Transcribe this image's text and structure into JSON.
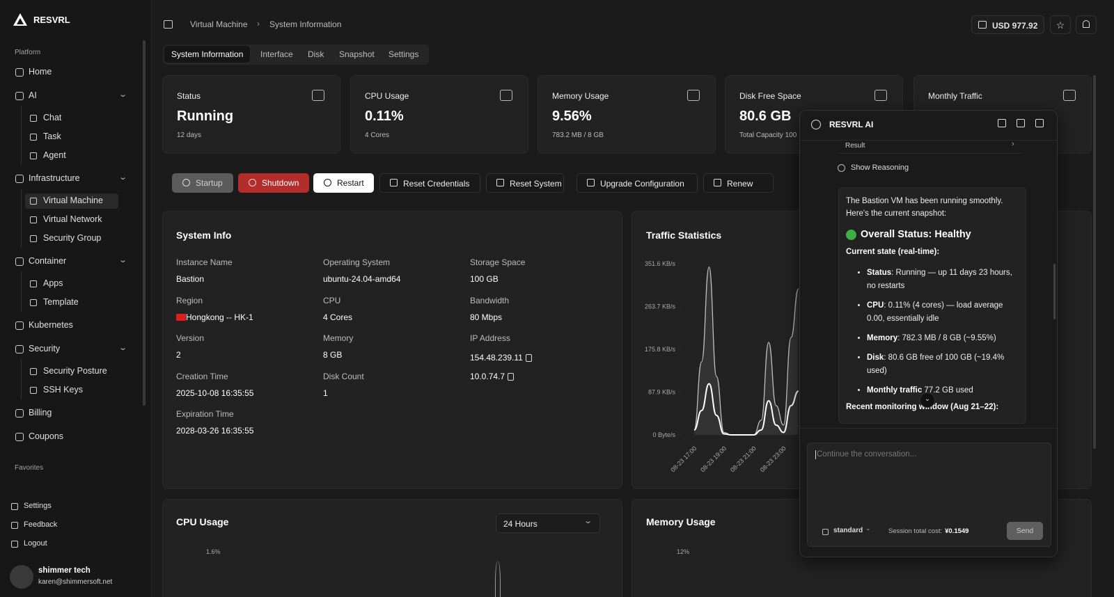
{
  "brand": "RESVRL",
  "sidebar": {
    "platform_label": "Platform",
    "items": [
      {
        "label": "Home"
      },
      {
        "label": "AI",
        "children": [
          "Chat",
          "Task",
          "Agent"
        ]
      },
      {
        "label": "Infrastructure",
        "children": [
          "Virtual Machine",
          "Virtual Network",
          "Security Group"
        ]
      },
      {
        "label": "Container",
        "children": [
          "Apps",
          "Template"
        ]
      },
      {
        "label": "Kubernetes"
      },
      {
        "label": "Security",
        "children": [
          "Security Posture",
          "SSH Keys"
        ]
      },
      {
        "label": "Billing"
      },
      {
        "label": "Coupons"
      }
    ],
    "favorites_label": "Favorites",
    "footer": [
      "Settings",
      "Feedback",
      "Logout"
    ],
    "user": {
      "name": "shimmer tech",
      "email": "karen@shimmersoft.net"
    }
  },
  "breadcrumb": [
    "Virtual Machine",
    "System Information"
  ],
  "balance": "USD 977.92",
  "tabs": [
    "System Information",
    "Interface",
    "Disk",
    "Snapshot",
    "Settings"
  ],
  "stats": [
    {
      "label": "Status",
      "value": "Running",
      "sub": "12 days"
    },
    {
      "label": "CPU Usage",
      "value": "0.11%",
      "sub": "4 Cores"
    },
    {
      "label": "Memory Usage",
      "value": "9.56%",
      "sub": "783.2 MB / 8 GB"
    },
    {
      "label": "Disk Free Space",
      "value": "80.6 GB",
      "sub": "Total Capacity 100"
    },
    {
      "label": "Monthly Traffic"
    }
  ],
  "actions": [
    "Startup",
    "Shutdown",
    "Restart",
    "Reset Credentials",
    "Reset System",
    "Upgrade Configuration",
    "Renew"
  ],
  "system_info": {
    "title": "System Info",
    "columns": [
      [
        {
          "label": "Instance Name",
          "value": "Bastion"
        },
        {
          "label": "Region",
          "value": "Hongkong -- HK-1"
        },
        {
          "label": "Version",
          "value": "2"
        },
        {
          "label": "Creation Time",
          "value": "2025-10-08 16:35:55"
        },
        {
          "label": "Expiration Time",
          "value": "2028-03-26 16:35:55"
        }
      ],
      [
        {
          "label": "Operating System",
          "value": "ubuntu-24.04-amd64"
        },
        {
          "label": "CPU",
          "value": "4 Cores"
        },
        {
          "label": "Memory",
          "value": "8 GB"
        },
        {
          "label": "Disk Count",
          "value": "1"
        }
      ],
      [
        {
          "label": "Storage Space",
          "value": "100 GB"
        },
        {
          "label": "Bandwidth",
          "value": "80 Mbps"
        },
        {
          "label": "IP Address",
          "value": [
            "154.48.239.11",
            "10.0.74.7"
          ]
        }
      ]
    ]
  },
  "chart_data": {
    "type": "line",
    "title": "Traffic Statistics",
    "categories": [
      "08-23 17:00",
      null,
      null,
      null,
      "08-23 19:00",
      null,
      null,
      null,
      "08-23 21:00",
      null,
      null,
      null,
      "08-23 23:00",
      null,
      null
    ],
    "series": [
      {
        "name": null,
        "color": "#bdbdbd",
        "values": [
          10,
          150,
          345,
          120,
          5,
          0,
          0,
          0,
          0,
          30,
          190,
          60,
          20,
          200,
          300
        ]
      },
      {
        "name": null,
        "color": "#ffffff",
        "values": [
          10,
          50,
          105,
          40,
          2,
          0,
          0,
          0,
          0,
          10,
          70,
          20,
          5,
          60,
          90
        ]
      }
    ],
    "ylim": [
      0,
      351.6
    ],
    "yticks": [
      {
        "value": 351.6,
        "label": "351.6 KB/s"
      },
      {
        "value": 263.7,
        "label": "263.7 KB/s"
      },
      {
        "value": 175.8,
        "label": "175.8 KB/s"
      },
      {
        "value": 87.9,
        "label": "87.9 KB/s"
      },
      {
        "value": 0,
        "label": "0 Byte/s"
      }
    ]
  },
  "cpu_card": {
    "title": "CPU Usage",
    "range": "24 Hours",
    "tick": "1.6%"
  },
  "memory_card": {
    "title": "Memory Usage",
    "tick": "12%"
  },
  "ai_panel": {
    "title": "RESVRL AI",
    "result": "Result",
    "reasoning": "Show Reasoning",
    "intro": "The Bastion VM has been running smoothly. Here's the current snapshot:",
    "status": "Overall Status: Healthy",
    "current": "Current state (real-time):",
    "bullets": [
      {
        "label": "Status",
        "text": ": Running — up 11 days 23 hours, no restarts"
      },
      {
        "label": "CPU",
        "text": ": 0.11% (4 cores) — load average 0.00, essentially idle"
      },
      {
        "label": "Memory",
        "text": ": 782.3 MB / 8 GB (~9.55%)"
      },
      {
        "label": "Disk",
        "text": ": 80.6 GB free of 100 GB (~19.4% used)"
      },
      {
        "label": "Monthly traffic",
        "text": " 77.2 GB used"
      }
    ],
    "recent": "Recent monitoring window (Aug 21–22):",
    "placeholder": "Continue the conversation...",
    "mode": "standard",
    "cost_label": "Session total cost:",
    "cost": "¥0.1549",
    "send": "Send"
  }
}
